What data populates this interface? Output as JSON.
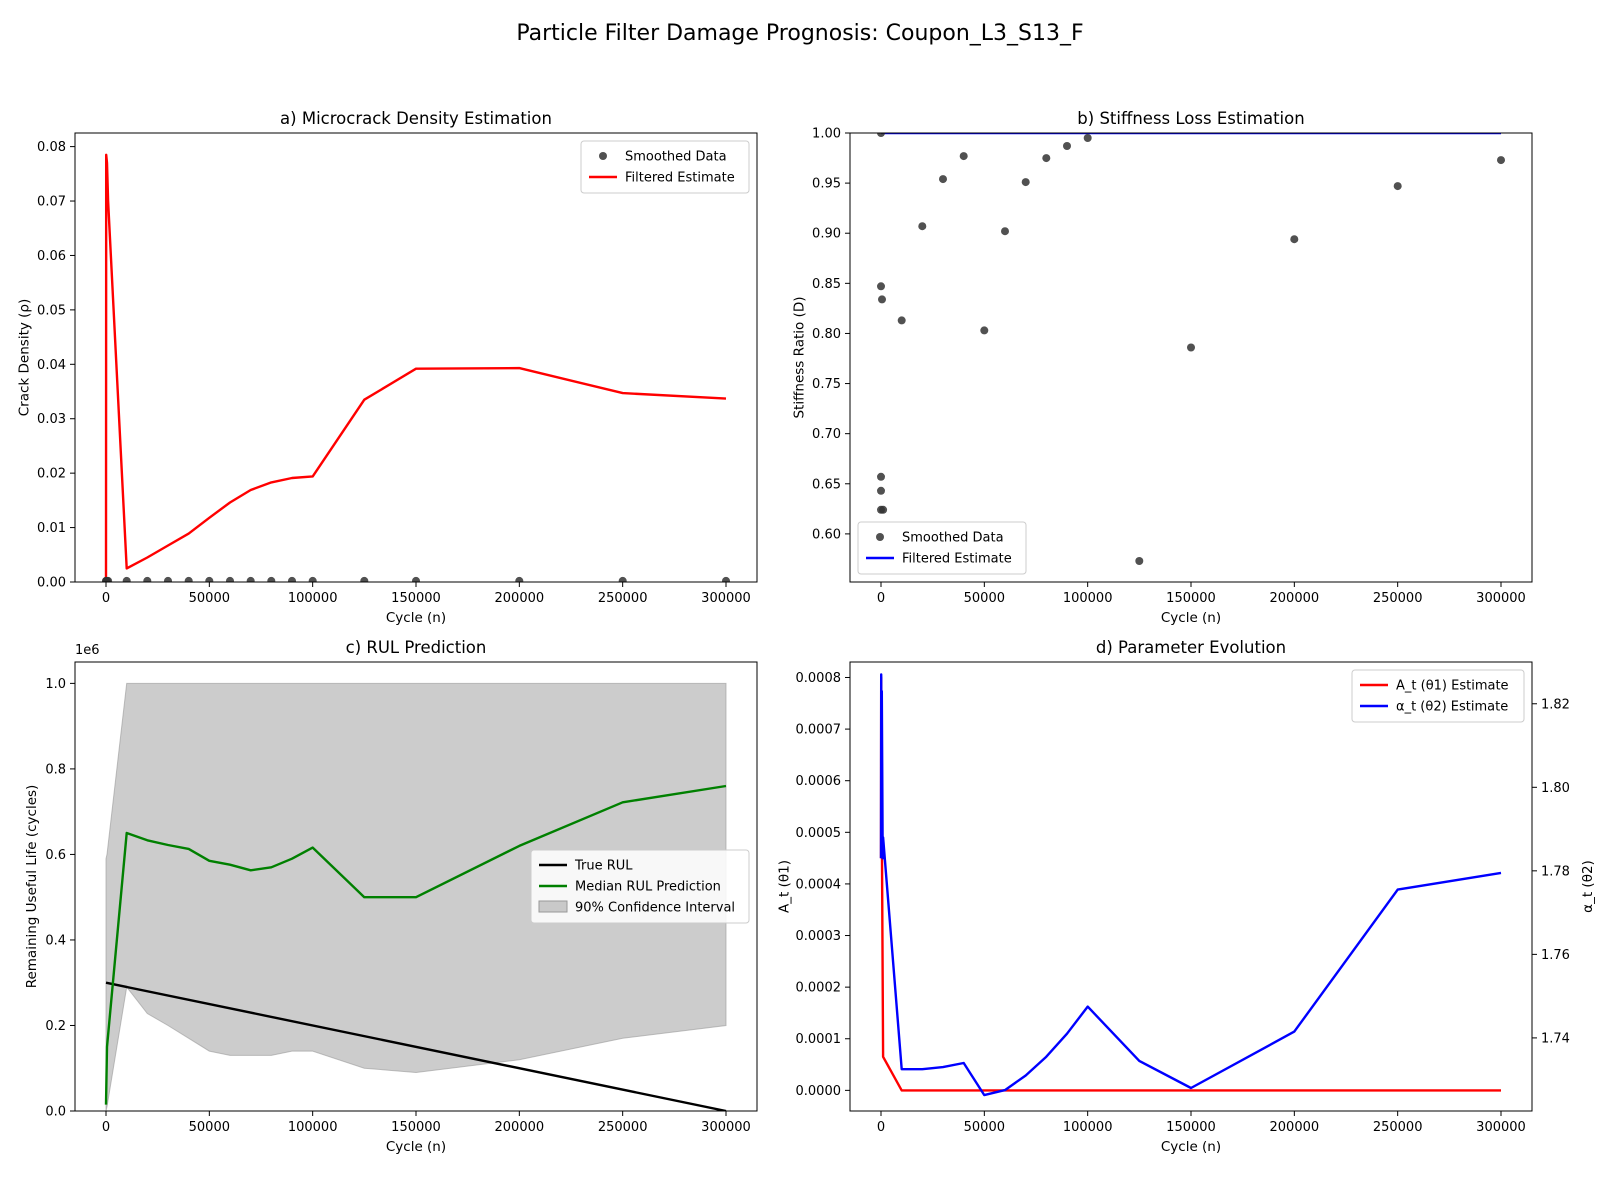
{
  "figure": {
    "title": "Particle Filter Damage Prognosis: Coupon_L3_S13_F"
  },
  "chart_data": [
    {
      "id": "a",
      "type": "line",
      "title": "a) Microcrack Density Estimation",
      "xlabel": "Cycle (n)",
      "ylabel": "Crack Density (ρ)",
      "xlim": [
        -15000,
        315000
      ],
      "ylim": [
        0,
        0.0825
      ],
      "xticks": [
        0,
        50000,
        100000,
        150000,
        200000,
        250000,
        300000
      ],
      "yticks": [
        0.0,
        0.01,
        0.02,
        0.03,
        0.04,
        0.05,
        0.06,
        0.07,
        0.08
      ],
      "ytick_labels": [
        "0.00",
        "0.01",
        "0.02",
        "0.03",
        "0.04",
        "0.05",
        "0.06",
        "0.07",
        "0.08"
      ],
      "legend_position": "upper right",
      "series": [
        {
          "name": "Smoothed Data",
          "kind": "scatter",
          "color": "#333333",
          "x": [
            0,
            100,
            500,
            1000,
            10000,
            20000,
            30000,
            40000,
            50000,
            60000,
            70000,
            80000,
            90000,
            100000,
            125000,
            150000,
            200000,
            250000,
            300000
          ],
          "y": [
            0.0002,
            0.0002,
            0.0002,
            0.0002,
            0.0002,
            0.0002,
            0.0002,
            0.0002,
            0.0002,
            0.0002,
            0.0002,
            0.0002,
            0.0002,
            0.0002,
            0.0002,
            0.0002,
            0.0002,
            0.0002,
            0.0002
          ]
        },
        {
          "name": "Filtered Estimate",
          "kind": "line",
          "color": "#ff0000",
          "x": [
            0,
            100,
            500,
            1000,
            10000,
            20000,
            30000,
            40000,
            50000,
            60000,
            70000,
            80000,
            90000,
            100000,
            125000,
            150000,
            200000,
            250000,
            300000
          ],
          "y": [
            0.0,
            0.0785,
            0.077,
            0.07,
            0.0025,
            0.0045,
            0.0067,
            0.0089,
            0.0118,
            0.0146,
            0.0169,
            0.0183,
            0.0191,
            0.0194,
            0.0335,
            0.0392,
            0.0393,
            0.0347,
            0.0337
          ]
        }
      ]
    },
    {
      "id": "b",
      "type": "line",
      "title": "b) Stiffness Loss Estimation",
      "xlabel": "Cycle (n)",
      "ylabel": "Stiffness Ratio (D)",
      "xlim": [
        -15000,
        315000
      ],
      "ylim": [
        0.552,
        1.0
      ],
      "xticks": [
        0,
        50000,
        100000,
        150000,
        200000,
        250000,
        300000
      ],
      "yticks": [
        0.6,
        0.65,
        0.7,
        0.75,
        0.8,
        0.85,
        0.9,
        0.95,
        1.0
      ],
      "ytick_labels": [
        "0.60",
        "0.65",
        "0.70",
        "0.75",
        "0.80",
        "0.85",
        "0.90",
        "0.95",
        "1.00"
      ],
      "legend_position": "lower left",
      "series": [
        {
          "name": "Smoothed Data",
          "kind": "scatter",
          "color": "#333333",
          "x": [
            0,
            0,
            0,
            0,
            0,
            500,
            1000,
            10000,
            20000,
            30000,
            40000,
            50000,
            60000,
            70000,
            80000,
            90000,
            100000,
            125000,
            150000,
            200000,
            250000,
            300000
          ],
          "y": [
            1.0,
            0.847,
            0.657,
            0.643,
            0.624,
            0.834,
            0.624,
            0.813,
            0.907,
            0.954,
            0.977,
            0.803,
            0.902,
            0.951,
            0.975,
            0.987,
            0.995,
            0.573,
            0.786,
            0.894,
            0.947,
            0.973
          ]
        },
        {
          "name": "Filtered Estimate",
          "kind": "line",
          "color": "#0000ff",
          "x": [
            0,
            300000
          ],
          "y": [
            1.0,
            1.0
          ]
        }
      ]
    },
    {
      "id": "c",
      "type": "line",
      "title": "c) RUL Prediction",
      "xlabel": "Cycle (n)",
      "ylabel": "Remaining Useful Life (cycles)",
      "offset_label": "1e6",
      "xlim": [
        -15000,
        315000
      ],
      "ylim": [
        0,
        1.05
      ],
      "xticks": [
        0,
        50000,
        100000,
        150000,
        200000,
        250000,
        300000
      ],
      "yticks": [
        0.0,
        0.2,
        0.4,
        0.6,
        0.8,
        1.0
      ],
      "ytick_labels": [
        "0.0",
        "0.2",
        "0.4",
        "0.6",
        "0.8",
        "1.0"
      ],
      "legend_position": "center right",
      "series": [
        {
          "name": "True RUL",
          "kind": "line",
          "color": "#000000",
          "x": [
            0,
            300000
          ],
          "y": [
            0.3,
            0.0
          ]
        },
        {
          "name": "Median RUL Prediction",
          "kind": "line",
          "color": "#008000",
          "x": [
            0,
            500,
            10000,
            20000,
            30000,
            40000,
            50000,
            60000,
            70000,
            80000,
            90000,
            100000,
            125000,
            150000,
            200000,
            250000,
            300000
          ],
          "y": [
            0.015,
            0.15,
            0.65,
            0.633,
            0.622,
            0.613,
            0.585,
            0.576,
            0.563,
            0.57,
            0.59,
            0.616,
            0.5,
            0.5,
            0.62,
            0.722,
            0.76
          ]
        },
        {
          "name": "90% Confidence Interval",
          "kind": "band",
          "color": "#cccccc",
          "x": [
            0,
            500,
            10000,
            20000,
            30000,
            40000,
            50000,
            60000,
            70000,
            80000,
            90000,
            100000,
            125000,
            150000,
            200000,
            250000,
            300000
          ],
          "lower": [
            0.0,
            0.01,
            0.29,
            0.228,
            0.2,
            0.17,
            0.14,
            0.13,
            0.13,
            0.13,
            0.14,
            0.14,
            0.1,
            0.09,
            0.12,
            0.17,
            0.2
          ],
          "upper": [
            0.59,
            0.6,
            1.0,
            1.0,
            1.0,
            1.0,
            1.0,
            1.0,
            1.0,
            1.0,
            1.0,
            1.0,
            1.0,
            1.0,
            1.0,
            1.0,
            1.0
          ]
        }
      ]
    },
    {
      "id": "d",
      "type": "line",
      "title": "d) Parameter Evolution",
      "xlabel": "Cycle (n)",
      "ylabel": "A_t (θ1)",
      "ylabel_right": "α_t (θ2)",
      "xlim": [
        -15000,
        315000
      ],
      "ylim": [
        -4e-05,
        0.00083
      ],
      "ylim_right": [
        1.7225,
        1.83
      ],
      "xticks": [
        0,
        50000,
        100000,
        150000,
        200000,
        250000,
        300000
      ],
      "yticks": [
        0.0,
        0.0001,
        0.0002,
        0.0003,
        0.0004,
        0.0005,
        0.0006,
        0.0007,
        0.0008
      ],
      "ytick_labels": [
        "0.0000",
        "0.0001",
        "0.0002",
        "0.0003",
        "0.0004",
        "0.0005",
        "0.0006",
        "0.0007",
        "0.0008"
      ],
      "yticks_right": [
        1.74,
        1.76,
        1.78,
        1.8,
        1.82
      ],
      "ytick_labels_right": [
        "1.74",
        "1.76",
        "1.78",
        "1.80",
        "1.82"
      ],
      "legend_position": "upper right",
      "left_axis_color": "#ff0000",
      "right_axis_color": "#0000ff",
      "series": [
        {
          "name": "A_t (θ1) Estimate",
          "kind": "line",
          "axis": "left",
          "color": "#ff0000",
          "x": [
            0,
            100,
            500,
            1000,
            10000,
            20000,
            30000,
            40000,
            50000,
            60000,
            70000,
            80000,
            90000,
            100000,
            125000,
            150000,
            200000,
            250000,
            300000
          ],
          "y": [
            0.00045,
            0.0008,
            0.00045,
            6.5e-05,
            0.0,
            0.0,
            0.0,
            0.0,
            0.0,
            0.0,
            0.0,
            0.0,
            0.0,
            0.0,
            0.0,
            0.0,
            0.0,
            0.0,
            0.0
          ]
        },
        {
          "name": "α_t (θ2) Estimate",
          "kind": "line",
          "axis": "right",
          "color": "#0000ff",
          "x": [
            0,
            100,
            200,
            400,
            800,
            1000,
            10000,
            20000,
            30000,
            40000,
            50000,
            60000,
            70000,
            80000,
            90000,
            100000,
            125000,
            150000,
            200000,
            250000,
            300000
          ],
          "y": [
            1.783,
            1.827,
            1.79,
            1.823,
            1.783,
            1.788,
            1.7325,
            1.7325,
            1.733,
            1.734,
            1.7263,
            1.7275,
            1.731,
            1.7355,
            1.741,
            1.7475,
            1.7345,
            1.728,
            1.7415,
            1.7755,
            1.7795
          ]
        }
      ]
    }
  ]
}
